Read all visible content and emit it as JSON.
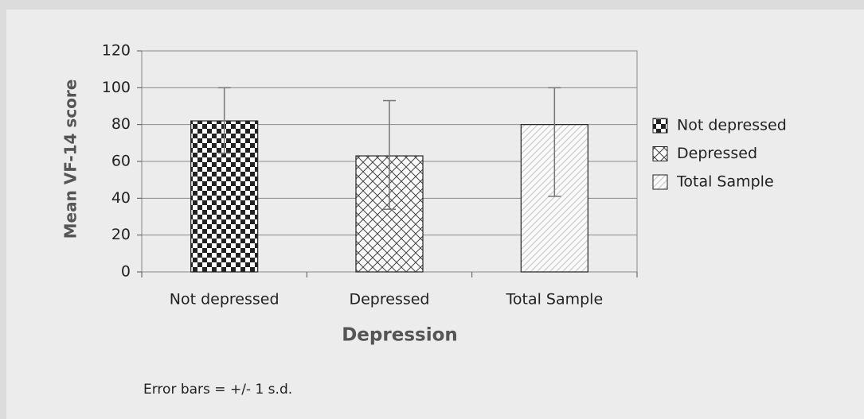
{
  "chart_data": {
    "type": "bar",
    "x_label": "Depression",
    "y_label": "Mean VF-14 score",
    "note": "Error bars = +/- 1 s.d.",
    "categories": [
      "Not depressed",
      "Depressed",
      "Total Sample"
    ],
    "values": [
      82,
      63,
      80
    ],
    "error_high": [
      100,
      93,
      100
    ],
    "error_low": [
      64.5,
      34,
      41
    ],
    "patterns": [
      "checker",
      "crosshatch",
      "diagonal"
    ],
    "ylim": [
      0,
      120
    ],
    "yticks": [
      0,
      20,
      40,
      60,
      80,
      100,
      120
    ],
    "grid": true,
    "legend": "right"
  }
}
